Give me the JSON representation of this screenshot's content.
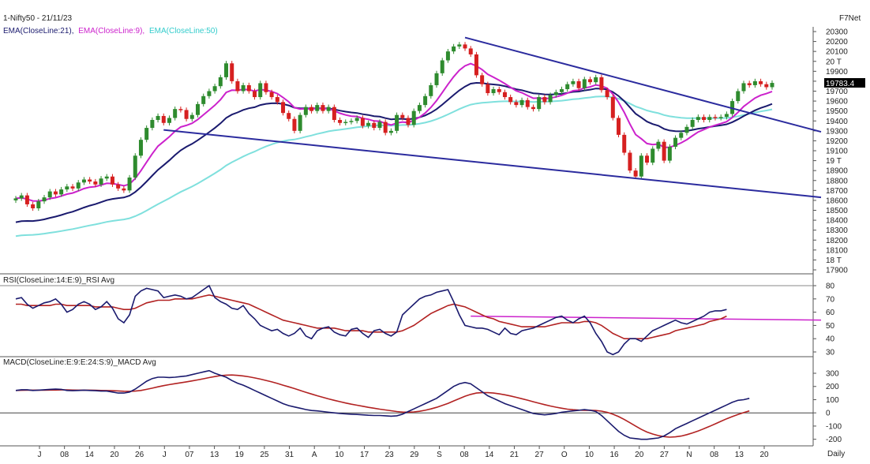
{
  "header": {
    "symbol": "1-Nifty50 - 21/11/23",
    "provider": "F7Net",
    "ema_parts": [
      {
        "text": "EMA(CloseLine:21),",
        "color": "#1a1a6e"
      },
      {
        "text": "EMA(CloseLine:9),",
        "color": "#cc22cc"
      },
      {
        "text": "EMA(CloseLine:50)",
        "color": "#33cccc"
      }
    ],
    "rsi_label": "RSI(CloseLine:14:E:9)_RSI Avg",
    "macd_label": "MACD(CloseLine:E:9:E:24:S:9)_MACD Avg",
    "period": "Daily"
  },
  "colors": {
    "up": "#2e8b2e",
    "down": "#d62020",
    "ema9": "#cc22cc",
    "ema21": "#1a1a6e",
    "ema50": "#7fe0dd",
    "trendline": "#2b2b9e",
    "rsi": "#1a1a6e",
    "rsi_avg": "#b22222",
    "macd": "#1a1a6e",
    "macd_avg": "#b22222",
    "rsi_hline": "#cc22cc",
    "last_price_bg": "#000000"
  },
  "chart_data": [
    {
      "type": "candlestick",
      "x_labels": [
        "J",
        "08",
        "14",
        "20",
        "26",
        "J",
        "07",
        "13",
        "19",
        "25",
        "31",
        "A",
        "10",
        "17",
        "23",
        "29",
        "S",
        "08",
        "14",
        "21",
        "27",
        "O",
        "10",
        "16",
        "20",
        "27",
        "N",
        "08",
        "13",
        "20"
      ],
      "y_ticks": [
        "20300",
        "20200",
        "20100",
        "20 T",
        "19900",
        "19800",
        "19700",
        "19600",
        "19500",
        "19400",
        "19300",
        "19200",
        "19100",
        "19 T",
        "18900",
        "18800",
        "18700",
        "18600",
        "18500",
        "18400",
        "18300",
        "18200",
        "18100",
        "18 T",
        "17900"
      ],
      "ylim": [
        17900,
        20300
      ],
      "last_price": "19783.4",
      "closes": [
        18620,
        18650,
        18560,
        18520,
        18590,
        18630,
        18690,
        18660,
        18710,
        18740,
        18720,
        18780,
        18810,
        18790,
        18760,
        18820,
        18840,
        18760,
        18720,
        18700,
        18830,
        19050,
        19210,
        19330,
        19410,
        19450,
        19380,
        19430,
        19520,
        19510,
        19420,
        19460,
        19570,
        19650,
        19700,
        19750,
        19840,
        19980,
        19800,
        19700,
        19760,
        19700,
        19640,
        19780,
        19690,
        19640,
        19590,
        19480,
        19420,
        19300,
        19460,
        19540,
        19500,
        19560,
        19500,
        19540,
        19410,
        19380,
        19390,
        19400,
        19430,
        19350,
        19380,
        19330,
        19390,
        19280,
        19300,
        19460,
        19430,
        19360,
        19500,
        19560,
        19650,
        19760,
        19880,
        20010,
        20100,
        20150,
        20170,
        20130,
        20070,
        19860,
        19770,
        19680,
        19720,
        19690,
        19640,
        19590,
        19560,
        19610,
        19540,
        19520,
        19640,
        19590,
        19660,
        19690,
        19720,
        19770,
        19800,
        19730,
        19820,
        19790,
        19840,
        19710,
        19640,
        19430,
        19260,
        19080,
        18900,
        18840,
        19050,
        18980,
        19120,
        19190,
        19000,
        19140,
        19230,
        19280,
        19340,
        19410,
        19440,
        19410,
        19440,
        19430,
        19440,
        19470,
        19600,
        19700,
        19780,
        19760,
        19800,
        19770,
        19740,
        19783
      ]
    },
    {
      "type": "line",
      "title": "RSI(CloseLine:14:E:9)_RSI Avg",
      "y_ticks": [
        80,
        70,
        60,
        50,
        40,
        30
      ],
      "ylim": [
        30,
        80
      ],
      "hline": 54,
      "series": [
        {
          "name": "RSI",
          "values": [
            70,
            71,
            66,
            63,
            65,
            67,
            68,
            70,
            66,
            60,
            62,
            66,
            68,
            66,
            62,
            64,
            68,
            63,
            55,
            52,
            58,
            72,
            76,
            78,
            77,
            76,
            71,
            72,
            73,
            72,
            70,
            71,
            74,
            77,
            80,
            71,
            68,
            66,
            63,
            62,
            65,
            59,
            55,
            50,
            48,
            46,
            47,
            44,
            42,
            44,
            48,
            42,
            40,
            46,
            48,
            49,
            45,
            43,
            42,
            47,
            48,
            44,
            41,
            46,
            47,
            44,
            42,
            45,
            58,
            62,
            66,
            70,
            72,
            73,
            75,
            76,
            77,
            68,
            58,
            50,
            49,
            48,
            48,
            47,
            45,
            43,
            48,
            44,
            43,
            46,
            47,
            48,
            50,
            52,
            54,
            56,
            57,
            54,
            52,
            55,
            57,
            52,
            44,
            38,
            30,
            28,
            30,
            36,
            40,
            40,
            38,
            42,
            46,
            48,
            50,
            52,
            54,
            52,
            51,
            53,
            55,
            57,
            60,
            61,
            61,
            62
          ]
        },
        {
          "name": "Avg",
          "values": [
            66,
            66,
            65,
            65,
            65,
            65,
            65,
            66,
            66,
            65,
            65,
            65,
            65,
            65,
            64,
            64,
            64,
            64,
            63,
            62,
            62,
            63,
            65,
            67,
            68,
            69,
            69,
            69,
            70,
            70,
            70,
            70,
            71,
            72,
            73,
            72,
            71,
            70,
            69,
            68,
            67,
            66,
            64,
            62,
            60,
            58,
            56,
            54,
            53,
            52,
            51,
            50,
            49,
            48,
            48,
            48,
            48,
            47,
            46,
            46,
            46,
            46,
            45,
            45,
            45,
            45,
            45,
            45,
            46,
            48,
            50,
            53,
            56,
            59,
            61,
            63,
            65,
            66,
            65,
            64,
            62,
            60,
            58,
            56,
            55,
            53,
            52,
            51,
            50,
            49,
            49,
            49,
            49,
            49,
            50,
            51,
            52,
            52,
            52,
            52,
            53,
            53,
            52,
            50,
            47,
            44,
            42,
            40,
            40,
            40,
            40,
            40,
            41,
            42,
            43,
            44,
            46,
            47,
            48,
            49,
            50,
            51,
            53,
            54,
            55,
            57
          ]
        }
      ]
    },
    {
      "type": "line",
      "title": "MACD(CloseLine:E:9:E:24:S:9)_MACD Avg",
      "y_ticks": [
        300,
        200,
        100,
        0,
        -100,
        -200
      ],
      "ylim": [
        -220,
        330
      ],
      "zero_line": 0,
      "series": [
        {
          "name": "MACD",
          "values": [
            170,
            175,
            175,
            170,
            172,
            175,
            178,
            180,
            178,
            170,
            168,
            170,
            172,
            170,
            168,
            165,
            165,
            158,
            150,
            150,
            158,
            180,
            210,
            240,
            260,
            270,
            270,
            268,
            270,
            275,
            280,
            290,
            300,
            310,
            320,
            300,
            285,
            270,
            245,
            225,
            210,
            190,
            170,
            150,
            130,
            110,
            90,
            70,
            55,
            45,
            35,
            25,
            18,
            15,
            10,
            5,
            0,
            -5,
            -8,
            -10,
            -12,
            -15,
            -18,
            -20,
            -20,
            -22,
            -25,
            -22,
            -10,
            10,
            30,
            50,
            70,
            90,
            110,
            140,
            170,
            200,
            220,
            230,
            220,
            190,
            160,
            130,
            110,
            90,
            70,
            55,
            40,
            25,
            10,
            -5,
            -10,
            -15,
            -10,
            -5,
            5,
            10,
            15,
            20,
            25,
            20,
            10,
            -20,
            -60,
            -100,
            -140,
            -170,
            -190,
            -195,
            -200,
            -200,
            -195,
            -190,
            -175,
            -150,
            -120,
            -100,
            -80,
            -60,
            -40,
            -20,
            0,
            20,
            40,
            60,
            80,
            95,
            100,
            110
          ]
        },
        {
          "name": "Avg",
          "values": [
            170,
            171,
            172,
            172,
            172,
            172,
            173,
            173,
            174,
            174,
            173,
            172,
            172,
            172,
            171,
            170,
            169,
            168,
            166,
            164,
            163,
            165,
            170,
            178,
            187,
            197,
            206,
            214,
            221,
            228,
            235,
            242,
            250,
            258,
            267,
            275,
            282,
            286,
            287,
            284,
            280,
            273,
            265,
            256,
            246,
            235,
            223,
            210,
            197,
            184,
            170,
            156,
            143,
            130,
            118,
            106,
            95,
            85,
            75,
            66,
            58,
            50,
            42,
            35,
            28,
            22,
            16,
            10,
            6,
            5,
            7,
            12,
            20,
            30,
            42,
            56,
            72,
            90,
            108,
            126,
            140,
            150,
            153,
            153,
            150,
            144,
            137,
            128,
            118,
            107,
            96,
            84,
            73,
            62,
            52,
            43,
            35,
            28,
            24,
            21,
            20,
            20,
            18,
            13,
            4,
            -10,
            -28,
            -50,
            -75,
            -100,
            -125,
            -145,
            -160,
            -172,
            -180,
            -184,
            -182,
            -176,
            -165,
            -152,
            -137,
            -120,
            -102,
            -83,
            -64,
            -45,
            -28,
            -12,
            2,
            15
          ]
        }
      ]
    }
  ]
}
